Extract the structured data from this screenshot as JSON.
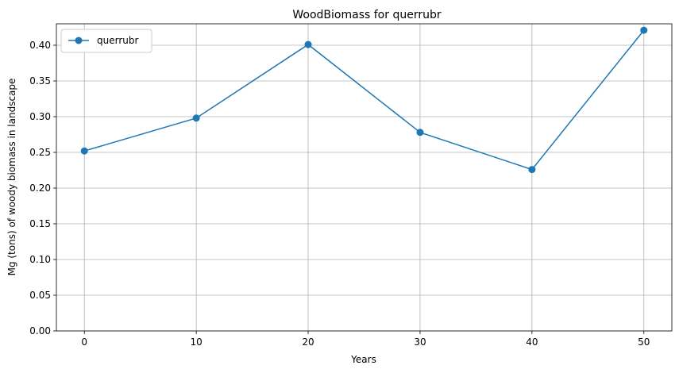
{
  "chart_data": {
    "type": "line",
    "title": "WoodBiomass for querrubr",
    "xlabel": "Years",
    "ylabel": "Mg (tons) of woody biomass in landscape",
    "x": [
      0,
      10,
      20,
      30,
      40,
      50
    ],
    "series": [
      {
        "name": "querrubr",
        "values": [
          0.252,
          0.298,
          0.401,
          0.278,
          0.226,
          0.421
        ],
        "color": "#1f77b4",
        "marker": "circle"
      }
    ],
    "xlim": [
      -2.5,
      52.5
    ],
    "ylim": [
      0,
      0.43
    ],
    "xticks": [
      "0",
      "10",
      "20",
      "30",
      "40",
      "50"
    ],
    "yticks": [
      "0.00",
      "0.05",
      "0.10",
      "0.15",
      "0.20",
      "0.25",
      "0.30",
      "0.35",
      "0.40"
    ],
    "grid": true,
    "legend_position": "top-left"
  }
}
